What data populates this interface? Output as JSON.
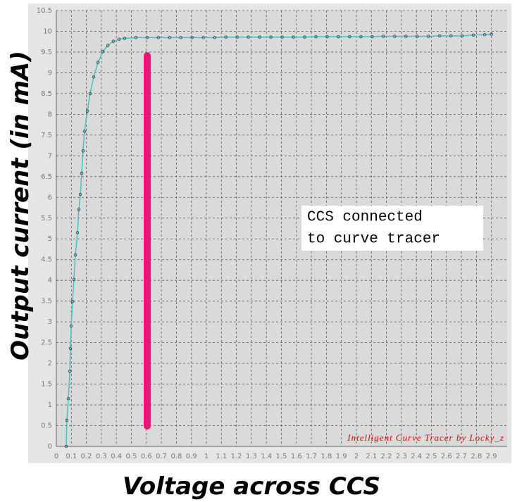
{
  "chart_data": {
    "type": "line",
    "y_label": "Output current (in mA)",
    "x_label": "Voltage across CCS",
    "annotation": [
      "CCS connected",
      "to curve tracer"
    ],
    "watermark": "Intelligent Curve Tracer by Locky_z",
    "xlim": [
      0,
      3
    ],
    "ylim": [
      0,
      10.5
    ],
    "xticks": [
      0,
      0.1,
      0.2,
      0.3,
      0.4,
      0.5,
      0.6,
      0.7,
      0.8,
      0.9,
      1,
      1.1,
      1.2,
      1.3,
      1.4,
      1.5,
      1.6,
      1.7,
      1.8,
      1.9,
      2,
      2.1,
      2.2,
      2.3,
      2.4,
      2.5,
      2.6,
      2.7,
      2.8,
      2.9
    ],
    "yticks": [
      0,
      0.5,
      1,
      1.5,
      2,
      2.5,
      3,
      3.5,
      4,
      4.5,
      5,
      5.5,
      6,
      6.5,
      7,
      7.5,
      8,
      8.5,
      9,
      9.5,
      10,
      10.5
    ],
    "grid": true,
    "x": [
      0.066,
      0.07,
      0.08,
      0.09,
      0.094,
      0.099,
      0.108,
      0.117,
      0.127,
      0.141,
      0.15,
      0.16,
      0.169,
      0.178,
      0.188,
      0.207,
      0.225,
      0.249,
      0.277,
      0.31,
      0.343,
      0.38,
      0.418,
      0.455,
      0.53,
      0.605,
      0.68,
      0.755,
      0.83,
      0.905,
      0.98,
      1.055,
      1.13,
      1.205,
      1.28,
      1.355,
      1.43,
      1.505,
      1.58,
      1.655,
      1.73,
      1.805,
      1.88,
      1.955,
      2.03,
      2.105,
      2.18,
      2.255,
      2.33,
      2.405,
      2.48,
      2.555,
      2.63,
      2.705,
      2.78,
      2.855,
      2.9
    ],
    "series": [
      {
        "name": "CCS",
        "color": "#40c4c4",
        "values": [
          0,
          0.63,
          1.15,
          1.81,
          2.36,
          2.9,
          3.49,
          4.02,
          4.61,
          5.15,
          5.71,
          6.07,
          6.58,
          7.12,
          7.59,
          8.08,
          8.5,
          8.9,
          9.25,
          9.51,
          9.66,
          9.76,
          9.81,
          9.83,
          9.85,
          9.85,
          9.85,
          9.85,
          9.85,
          9.85,
          9.85,
          9.85,
          9.86,
          9.86,
          9.86,
          9.86,
          9.86,
          9.86,
          9.86,
          9.86,
          9.87,
          9.87,
          9.87,
          9.87,
          9.87,
          9.87,
          9.88,
          9.88,
          9.88,
          9.88,
          9.88,
          9.89,
          9.89,
          9.89,
          9.91,
          9.92,
          9.93
        ]
      }
    ]
  }
}
